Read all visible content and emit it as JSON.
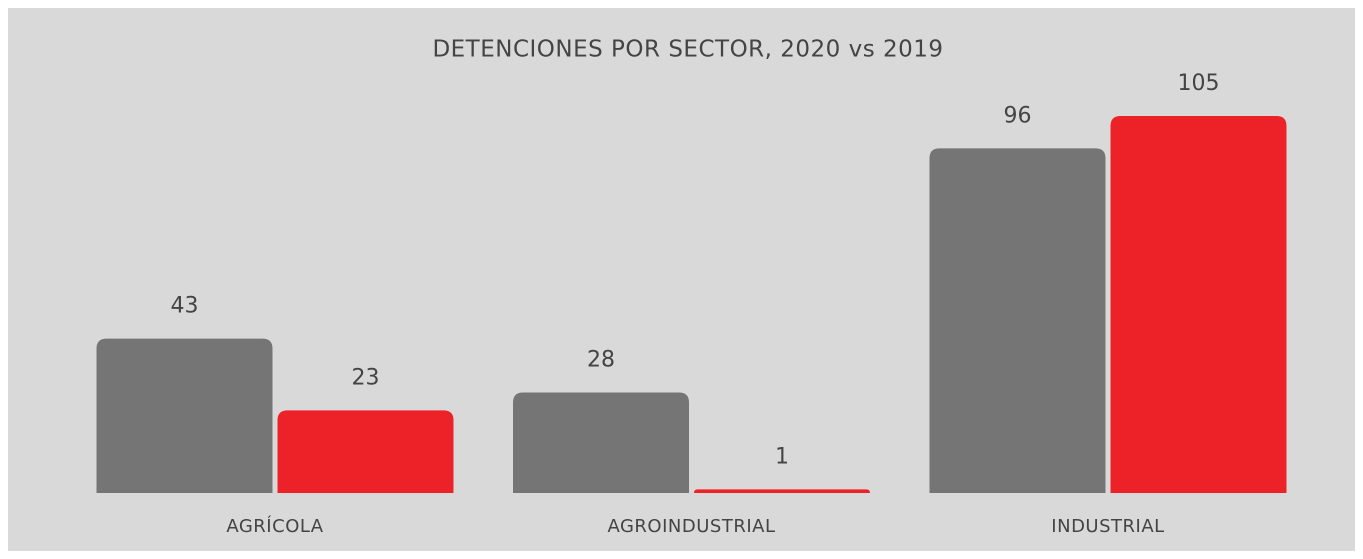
{
  "chart_data": {
    "type": "bar",
    "title": "DETENCIONES POR SECTOR, 2020 vs 2019",
    "categories": [
      "AGRÍCOLA",
      "AGROINDUSTRIAL",
      "INDUSTRIAL"
    ],
    "series": [
      {
        "color": "#757575",
        "values": [
          43,
          28,
          96
        ]
      },
      {
        "color": "#ed2229",
        "values": [
          23,
          1,
          105
        ]
      }
    ]
  }
}
